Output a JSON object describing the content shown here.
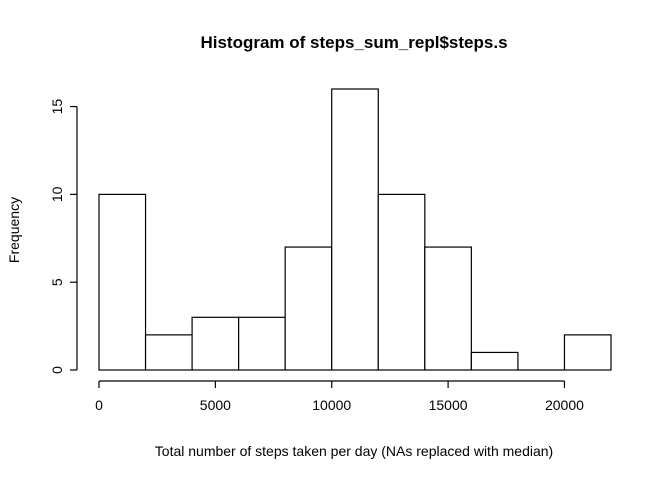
{
  "chart_data": {
    "type": "bar",
    "title": "Histogram of steps_sum_repl$steps.s",
    "xlabel": "Total number of steps taken per day (NAs replaced with median)",
    "ylabel": "Frequency",
    "bins": [
      {
        "from": 0,
        "to": 2000,
        "count": 10
      },
      {
        "from": 2000,
        "to": 4000,
        "count": 2
      },
      {
        "from": 4000,
        "to": 6000,
        "count": 3
      },
      {
        "from": 6000,
        "to": 8000,
        "count": 3
      },
      {
        "from": 8000,
        "to": 10000,
        "count": 7
      },
      {
        "from": 10000,
        "to": 12000,
        "count": 16
      },
      {
        "from": 12000,
        "to": 14000,
        "count": 10
      },
      {
        "from": 14000,
        "to": 16000,
        "count": 7
      },
      {
        "from": 16000,
        "to": 18000,
        "count": 1
      },
      {
        "from": 18000,
        "to": 20000,
        "count": 0
      },
      {
        "from": 20000,
        "to": 22000,
        "count": 2
      }
    ],
    "xlim": [
      0,
      22000
    ],
    "ylim": [
      0,
      16
    ],
    "x_ticks": [
      0,
      5000,
      10000,
      15000,
      20000
    ],
    "x_tick_labels": [
      "0",
      "5000",
      "10000",
      "15000",
      "20000"
    ],
    "y_ticks": [
      0,
      5,
      10,
      15
    ],
    "y_tick_labels": [
      "0",
      "5",
      "10",
      "15"
    ],
    "bar_fill": "#ffffff",
    "bar_stroke": "#000000",
    "grid": false,
    "legend": "none"
  }
}
